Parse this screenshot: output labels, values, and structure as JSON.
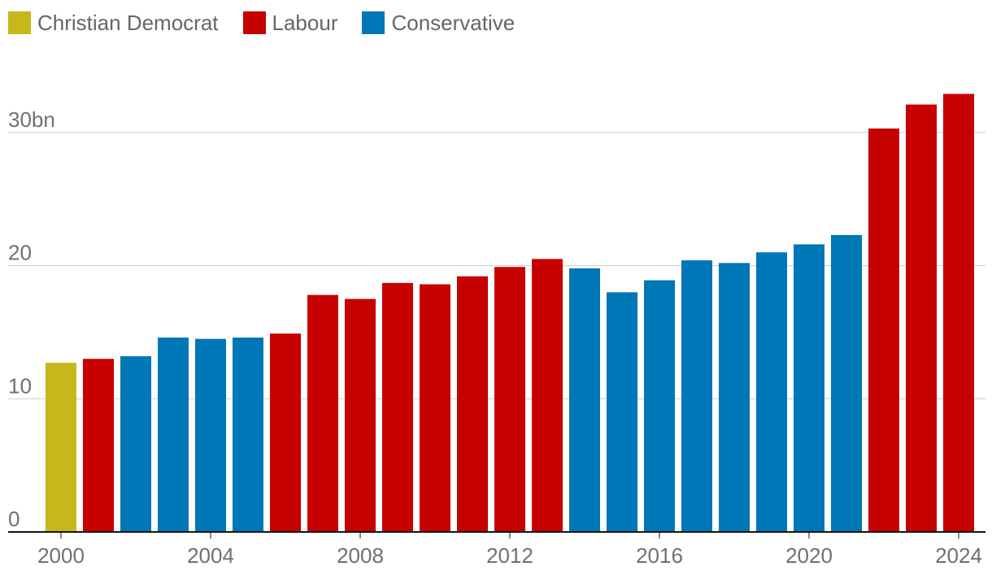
{
  "legend": [
    {
      "name": "Christian Democrat",
      "color": "#c7b71a"
    },
    {
      "name": "Labour",
      "color": "#c70000"
    },
    {
      "name": "Conservative",
      "color": "#0077b6"
    }
  ],
  "chart_data": {
    "type": "bar",
    "title": "",
    "xlabel": "",
    "ylabel": "",
    "ylim": [
      0,
      35
    ],
    "grid": true,
    "legend_position": "top-left",
    "y_ticks": [
      {
        "value": 0,
        "label": "0"
      },
      {
        "value": 10,
        "label": "10"
      },
      {
        "value": 20,
        "label": "20"
      },
      {
        "value": 30,
        "label": "30bn"
      }
    ],
    "x_ticks": [
      "2000",
      "2004",
      "2008",
      "2012",
      "2016",
      "2020",
      "2024"
    ],
    "categories": [
      "2000",
      "2001",
      "2002",
      "2003",
      "2004",
      "2005",
      "2006",
      "2007",
      "2008",
      "2009",
      "2010",
      "2011",
      "2012",
      "2013",
      "2014",
      "2015",
      "2016",
      "2017",
      "2018",
      "2019",
      "2020",
      "2021",
      "2022",
      "2023",
      "2024"
    ],
    "values": [
      12.7,
      13.0,
      13.2,
      14.6,
      14.5,
      14.6,
      14.9,
      17.8,
      17.5,
      18.7,
      18.6,
      19.2,
      19.9,
      20.5,
      19.8,
      18.0,
      18.9,
      20.4,
      20.2,
      21.0,
      21.6,
      22.3,
      30.3,
      32.1,
      32.9
    ],
    "party": [
      "Christian Democrat",
      "Labour",
      "Conservative",
      "Conservative",
      "Conservative",
      "Conservative",
      "Labour",
      "Labour",
      "Labour",
      "Labour",
      "Labour",
      "Labour",
      "Labour",
      "Labour",
      "Conservative",
      "Conservative",
      "Conservative",
      "Conservative",
      "Conservative",
      "Conservative",
      "Conservative",
      "Conservative",
      "Labour",
      "Labour",
      "Labour"
    ]
  }
}
